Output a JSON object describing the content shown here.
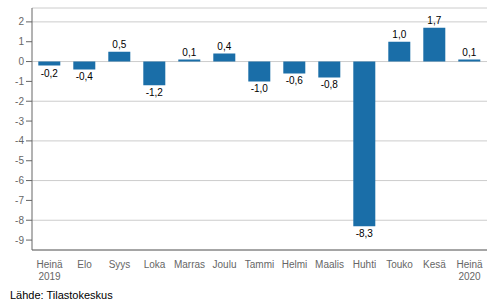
{
  "chart_data": {
    "type": "bar",
    "categories": [
      "Heinä\n2019",
      "Elo",
      "Syys",
      "Loka",
      "Marras",
      "Joulu",
      "Tammi",
      "Helmi",
      "Maalis",
      "Huhti",
      "Touko",
      "Kesä",
      "Heinä\n2020"
    ],
    "values": [
      -0.2,
      -0.4,
      0.5,
      -1.2,
      0.1,
      0.4,
      -1.0,
      -0.6,
      -0.8,
      -8.3,
      1.0,
      1.7,
      0.1
    ],
    "value_labels": [
      "-0,2",
      "-0,4",
      "0,5",
      "-1,2",
      "0,1",
      "0,4",
      "-1,0",
      "-0,6",
      "-0,8",
      "-8,3",
      "1,0",
      "1,7",
      "0,1"
    ],
    "data_labels": true,
    "color": "#1a6ea8",
    "ylim": [
      -9.5,
      2.7
    ],
    "yticks": [
      -9,
      -8,
      -7,
      -6,
      -5,
      -4,
      -3,
      -2,
      -1,
      0,
      1,
      2
    ],
    "grid": true,
    "annotations": [
      "Lähde: Tilastokeskus"
    ]
  }
}
